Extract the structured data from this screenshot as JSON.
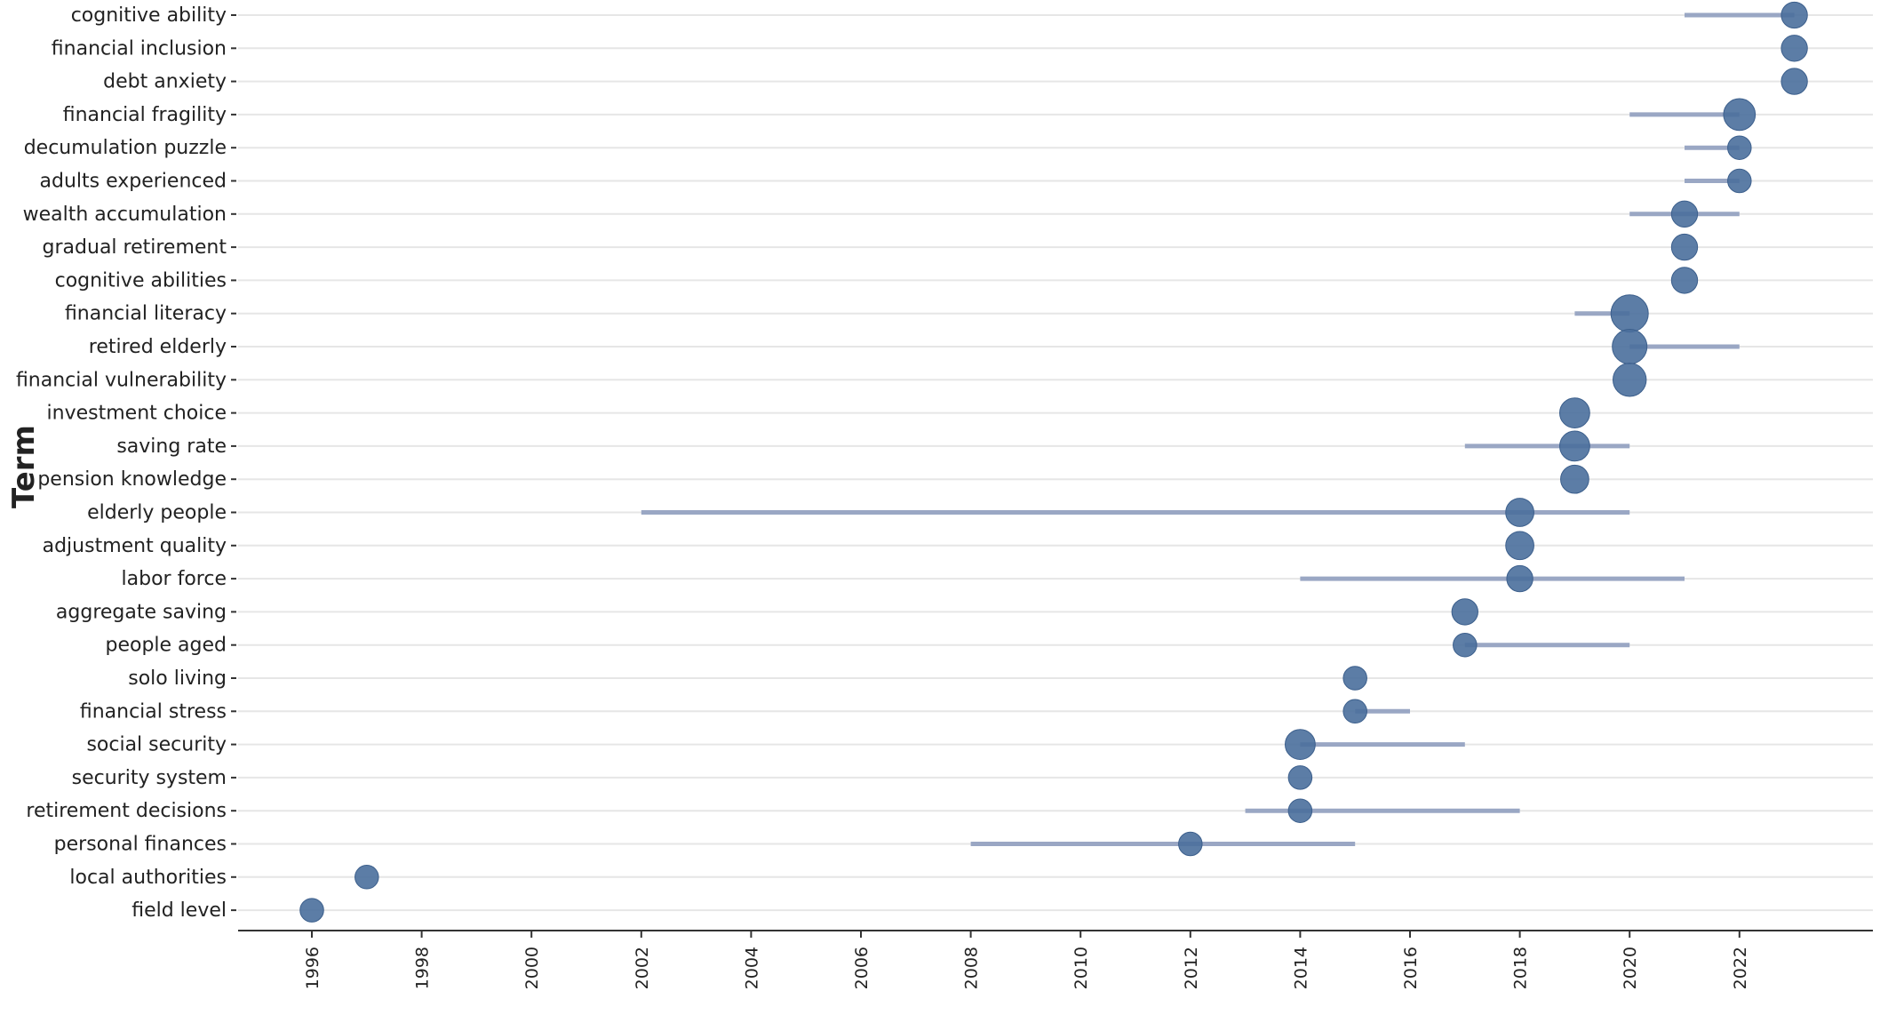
{
  "chart_data": {
    "type": "scatter",
    "ylabel": "Term",
    "xlabel": "",
    "xlim": [
      1994,
      2025.4
    ],
    "x_ticks": [
      "1996",
      "1998",
      "2000",
      "2002",
      "2004",
      "2006",
      "2008",
      "2010",
      "2012",
      "2014",
      "2016",
      "2018",
      "2020",
      "2022"
    ],
    "grid": "horizontal",
    "colors": {
      "bubble": "#4a6f9c",
      "range": "#9aa7c4",
      "grid": "#e6e6e6",
      "axis": "#333333"
    },
    "points": [
      {
        "term": "cognitive ability",
        "year": 2023,
        "range": [
          2021,
          2023
        ],
        "frequency": 3
      },
      {
        "term": "financial inclusion",
        "year": 2023,
        "range": [
          2023,
          2023
        ],
        "frequency": 3
      },
      {
        "term": "debt anxiety",
        "year": 2023,
        "range": [
          2023,
          2023
        ],
        "frequency": 3
      },
      {
        "term": "financial fragility",
        "year": 2022,
        "range": [
          2020,
          2022
        ],
        "frequency": 6
      },
      {
        "term": "decumulation puzzle",
        "year": 2022,
        "range": [
          2021,
          2022
        ],
        "frequency": 2
      },
      {
        "term": "adults experienced",
        "year": 2022,
        "range": [
          2021,
          2022
        ],
        "frequency": 2
      },
      {
        "term": "wealth accumulation",
        "year": 2021,
        "range": [
          2020,
          2022
        ],
        "frequency": 3
      },
      {
        "term": "gradual retirement",
        "year": 2021,
        "range": [
          2021,
          2021
        ],
        "frequency": 3
      },
      {
        "term": "cognitive abilities",
        "year": 2021,
        "range": [
          2021,
          2021
        ],
        "frequency": 3
      },
      {
        "term": "financial literacy",
        "year": 2020,
        "range": [
          2019,
          2020
        ],
        "frequency": 10
      },
      {
        "term": "retired elderly",
        "year": 2020,
        "range": [
          2020,
          2022
        ],
        "frequency": 8
      },
      {
        "term": "financial vulnerability",
        "year": 2020,
        "range": [
          2020,
          2020
        ],
        "frequency": 7
      },
      {
        "term": "investment choice",
        "year": 2019,
        "range": [
          2019,
          2019
        ],
        "frequency": 5
      },
      {
        "term": "saving rate",
        "year": 2019,
        "range": [
          2017,
          2020
        ],
        "frequency": 5
      },
      {
        "term": "pension knowledge",
        "year": 2019,
        "range": [
          2019,
          2019
        ],
        "frequency": 4
      },
      {
        "term": "elderly people",
        "year": 2018,
        "range": [
          2002,
          2020
        ],
        "frequency": 4
      },
      {
        "term": "adjustment quality",
        "year": 2018,
        "range": [
          2018,
          2018
        ],
        "frequency": 4
      },
      {
        "term": "labor force",
        "year": 2018,
        "range": [
          2014,
          2021
        ],
        "frequency": 3
      },
      {
        "term": "aggregate saving",
        "year": 2017,
        "range": [
          2017,
          2017
        ],
        "frequency": 3
      },
      {
        "term": "people aged",
        "year": 2017,
        "range": [
          2017,
          2020
        ],
        "frequency": 2
      },
      {
        "term": "solo living",
        "year": 2015,
        "range": [
          2015,
          2015
        ],
        "frequency": 2
      },
      {
        "term": "financial stress",
        "year": 2015,
        "range": [
          2015,
          2016
        ],
        "frequency": 2
      },
      {
        "term": "social security",
        "year": 2014,
        "range": [
          2014,
          2017
        ],
        "frequency": 5
      },
      {
        "term": "security system",
        "year": 2014,
        "range": [
          2014,
          2014
        ],
        "frequency": 2
      },
      {
        "term": "retirement decisions",
        "year": 2014,
        "range": [
          2013,
          2018
        ],
        "frequency": 2
      },
      {
        "term": "personal finances",
        "year": 2012,
        "range": [
          2008,
          2015
        ],
        "frequency": 2
      },
      {
        "term": "local authorities",
        "year": 1997,
        "range": [
          1997,
          1997
        ],
        "frequency": 2
      },
      {
        "term": "field level",
        "year": 1996,
        "range": [
          1996,
          1996
        ],
        "frequency": 2
      }
    ]
  }
}
